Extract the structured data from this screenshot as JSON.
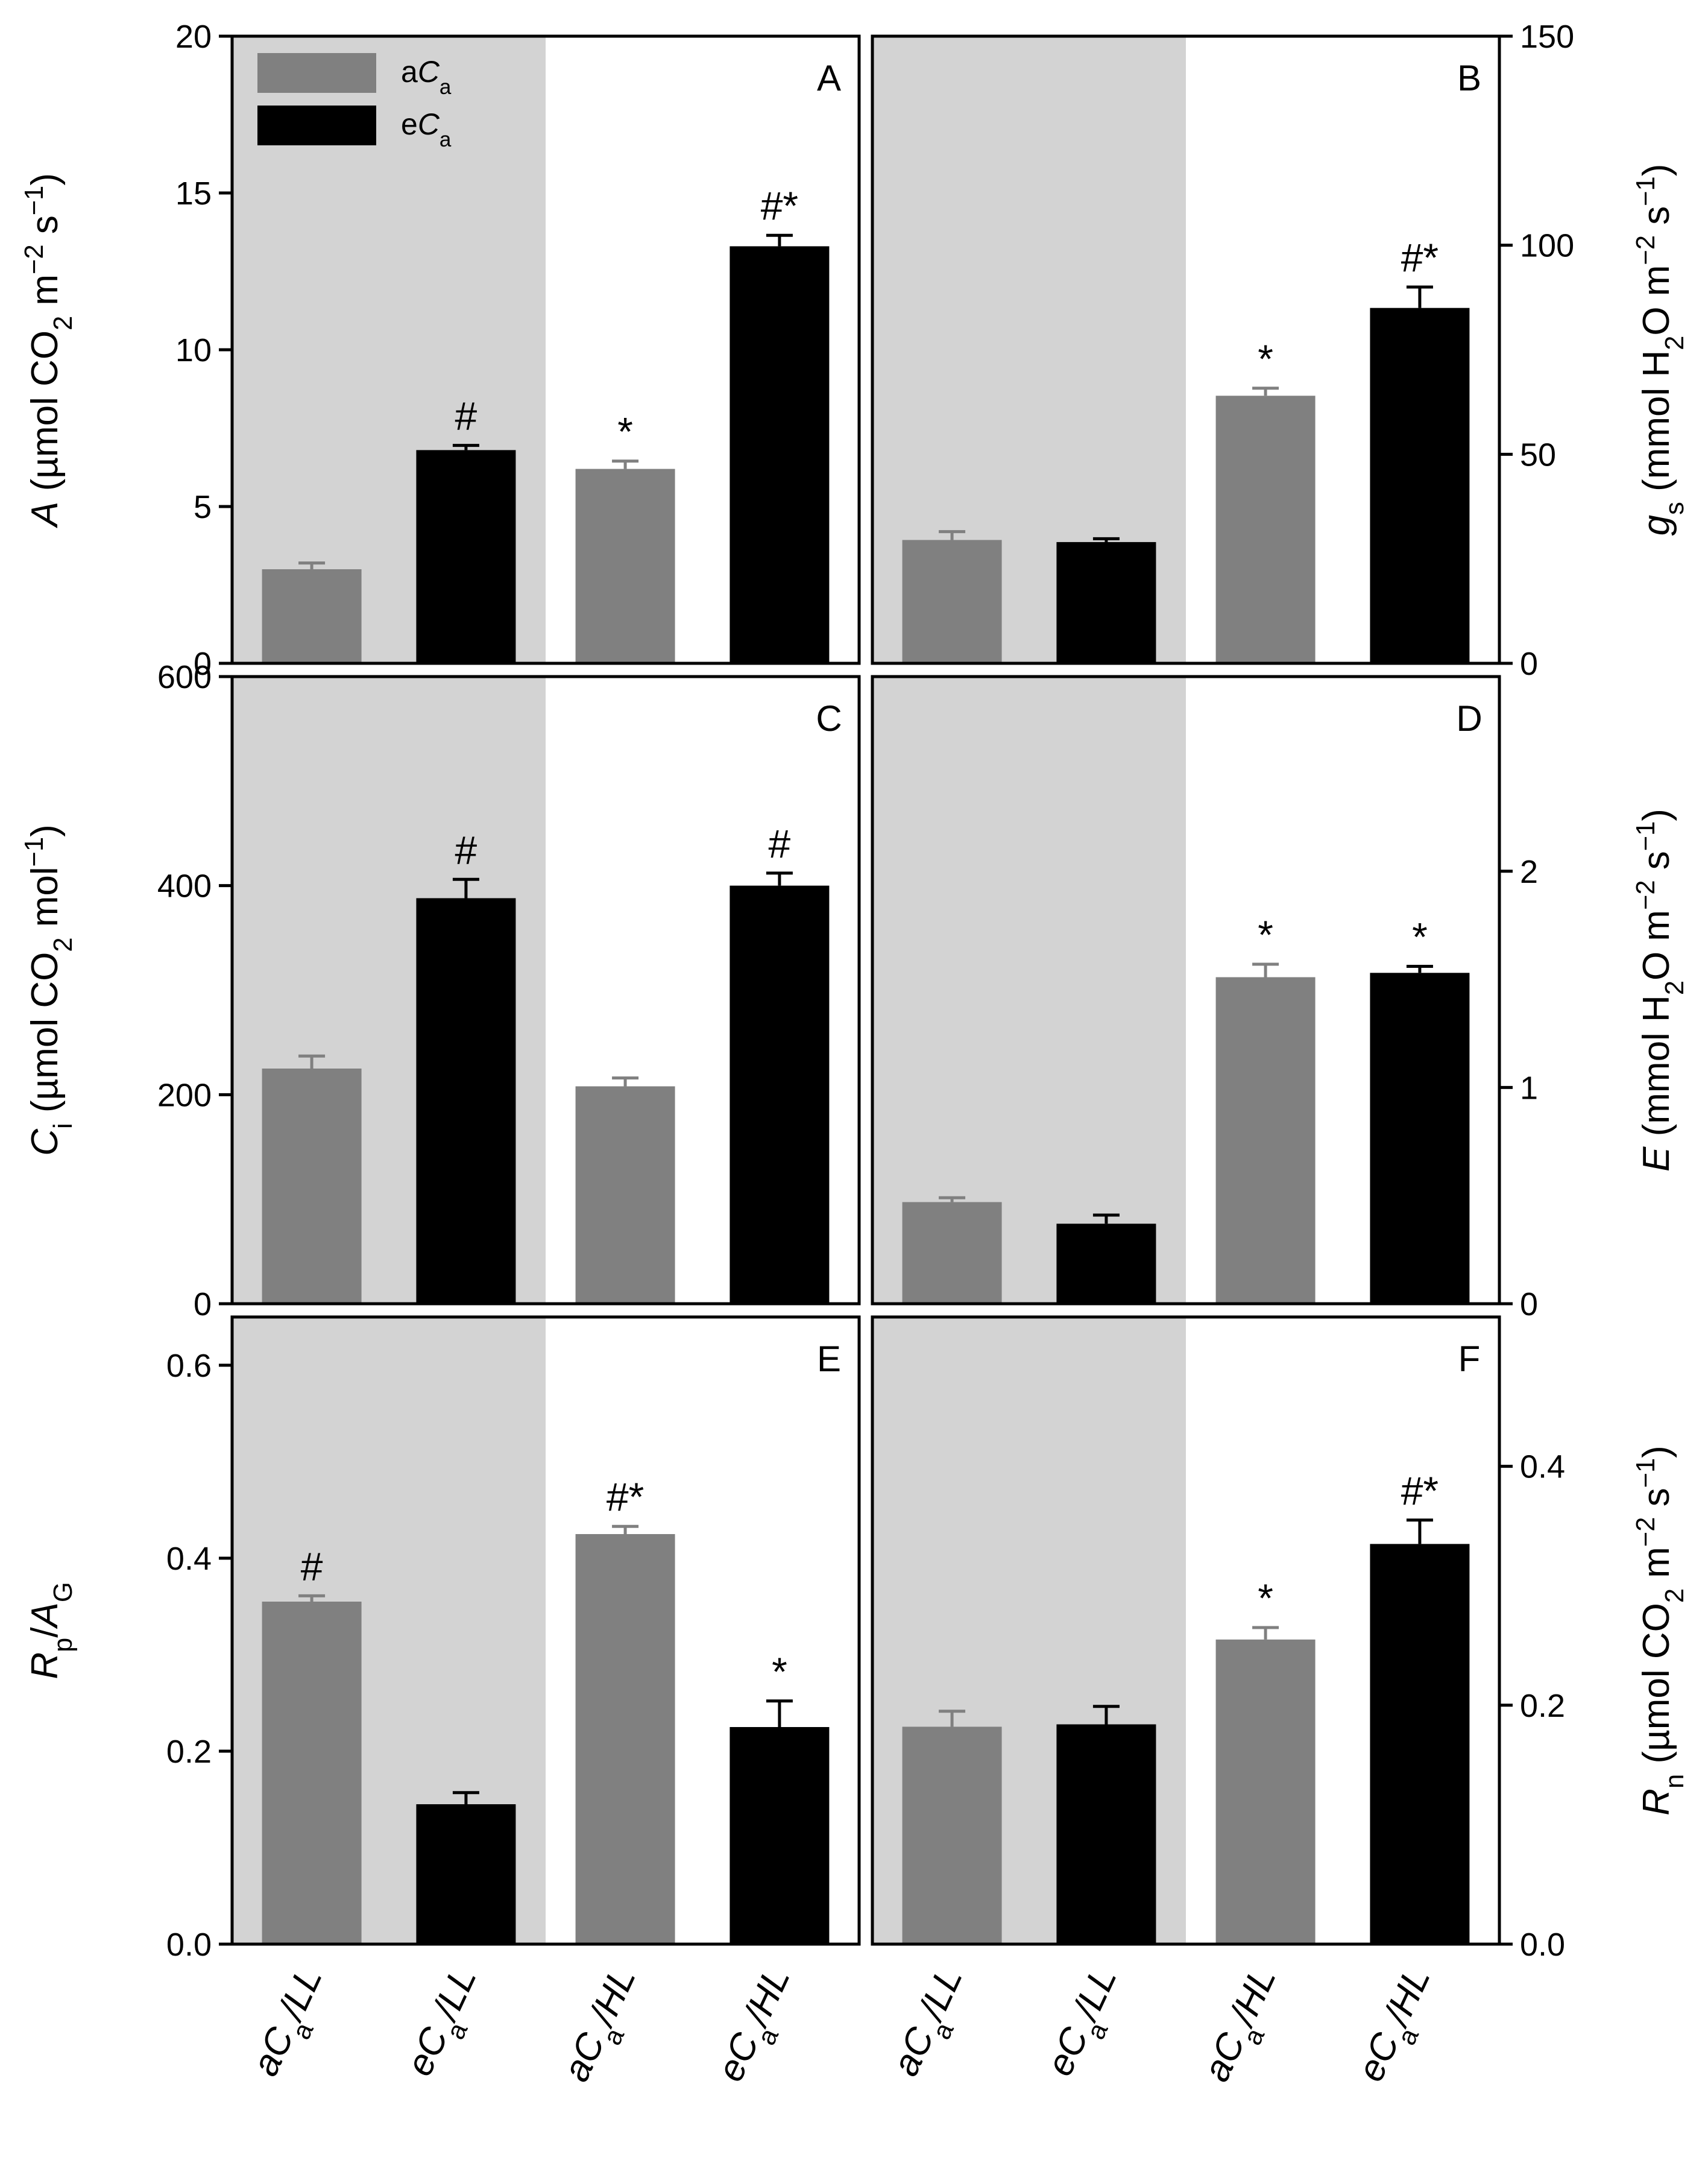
{
  "figure_description": "Six-panel bar chart of leaf gas exchange under ambient or elevated CO2 and low or high light",
  "colors": {
    "aCa": "#808080",
    "eCa": "#000000",
    "shade": "#d3d3d3",
    "axis": "#000000"
  },
  "legend": {
    "entries": [
      {
        "series": "aCa",
        "prefix": "a",
        "ital": "C",
        "sub": "a"
      },
      {
        "series": "eCa",
        "prefix": "e",
        "ital": "C",
        "sub": "a"
      }
    ]
  },
  "x_categories": [
    {
      "prefix": "a",
      "ital": "C",
      "sub": "a",
      "suffix": "/LL"
    },
    {
      "prefix": "e",
      "ital": "C",
      "sub": "a",
      "suffix": "/LL"
    },
    {
      "prefix": "a",
      "ital": "C",
      "sub": "a",
      "suffix": "/HL"
    },
    {
      "prefix": "e",
      "ital": "C",
      "sub": "a",
      "suffix": "/HL"
    }
  ],
  "chart_data": [
    {
      "panel": "A",
      "type": "bar",
      "y_axis_side": "left",
      "categories": [
        "aCa/LL",
        "eCa/LL",
        "aCa/HL",
        "eCa/HL"
      ],
      "series_of_bar": [
        "aCa",
        "eCa",
        "aCa",
        "eCa"
      ],
      "values": [
        3.0,
        6.8,
        6.2,
        13.3
      ],
      "errors": [
        0.2,
        0.15,
        0.25,
        0.35
      ],
      "annotations": [
        "",
        "#",
        "*",
        "#*"
      ],
      "ylim": [
        0,
        20
      ],
      "yticks": [
        0,
        5,
        10,
        15,
        20
      ],
      "ylabel_parts": [
        {
          "t": "A",
          "s": "i"
        },
        {
          "t": " (µmol CO",
          "s": "n"
        },
        {
          "t": "2",
          "s": "sub"
        },
        {
          "t": " m",
          "s": "n"
        },
        {
          "t": "−2",
          "s": "sup"
        },
        {
          "t": " s",
          "s": "n"
        },
        {
          "t": "−1",
          "s": "sup"
        },
        {
          "t": ")",
          "s": "n"
        }
      ],
      "shaded_categories": "aCa/LL, eCa/LL"
    },
    {
      "panel": "B",
      "type": "bar",
      "y_axis_side": "right",
      "categories": [
        "aCa/LL",
        "eCa/LL",
        "aCa/HL",
        "eCa/HL"
      ],
      "series_of_bar": [
        "aCa",
        "eCa",
        "aCa",
        "eCa"
      ],
      "values": [
        29.5,
        29.0,
        64.0,
        85.0
      ],
      "errors": [
        2.0,
        0.8,
        1.8,
        5.0
      ],
      "annotations": [
        "",
        "",
        "*",
        "#*"
      ],
      "ylim": [
        0,
        150
      ],
      "yticks": [
        0,
        50,
        100,
        150
      ],
      "ylabel_parts": [
        {
          "t": "g",
          "s": "i"
        },
        {
          "t": "s",
          "s": "sub"
        },
        {
          "t": " (mmol H",
          "s": "n"
        },
        {
          "t": "2",
          "s": "sub"
        },
        {
          "t": "O m",
          "s": "n"
        },
        {
          "t": "−2",
          "s": "sup"
        },
        {
          "t": " s",
          "s": "n"
        },
        {
          "t": "−1",
          "s": "sup"
        },
        {
          "t": ")",
          "s": "n"
        }
      ],
      "shaded_categories": "aCa/LL, eCa/LL"
    },
    {
      "panel": "C",
      "type": "bar",
      "y_axis_side": "left",
      "categories": [
        "aCa/LL",
        "eCa/LL",
        "aCa/HL",
        "eCa/HL"
      ],
      "series_of_bar": [
        "aCa",
        "eCa",
        "aCa",
        "eCa"
      ],
      "values": [
        225,
        388,
        208,
        400
      ],
      "errors": [
        12,
        18,
        8,
        12
      ],
      "annotations": [
        "",
        "#",
        "",
        "#"
      ],
      "ylim": [
        0,
        600
      ],
      "yticks": [
        0,
        200,
        400,
        600
      ],
      "ylabel_parts": [
        {
          "t": "C",
          "s": "i"
        },
        {
          "t": "i",
          "s": "sub"
        },
        {
          "t": " (µmol CO",
          "s": "n"
        },
        {
          "t": "2",
          "s": "sub"
        },
        {
          "t": " mol",
          "s": "n"
        },
        {
          "t": "−1",
          "s": "sup"
        },
        {
          "t": ")",
          "s": "n"
        }
      ],
      "shaded_categories": "aCa/LL, eCa/LL"
    },
    {
      "panel": "D",
      "type": "bar",
      "y_axis_side": "right",
      "categories": [
        "aCa/LL",
        "eCa/LL",
        "aCa/HL",
        "eCa/HL"
      ],
      "series_of_bar": [
        "aCa",
        "eCa",
        "aCa",
        "eCa"
      ],
      "values": [
        0.47,
        0.37,
        1.51,
        1.53
      ],
      "errors": [
        0.02,
        0.04,
        0.06,
        0.03
      ],
      "annotations": [
        "",
        "",
        "*",
        "*"
      ],
      "ylim": [
        0,
        2.9
      ],
      "yticks": [
        0,
        1,
        2
      ],
      "ylabel_parts": [
        {
          "t": "E",
          "s": "i"
        },
        {
          "t": " (mmol H",
          "s": "n"
        },
        {
          "t": "2",
          "s": "sub"
        },
        {
          "t": "O m",
          "s": "n"
        },
        {
          "t": "−2",
          "s": "sup"
        },
        {
          "t": " s",
          "s": "n"
        },
        {
          "t": "−1",
          "s": "sup"
        },
        {
          "t": ")",
          "s": "n"
        }
      ],
      "shaded_categories": "aCa/LL, eCa/LL"
    },
    {
      "panel": "E",
      "type": "bar",
      "y_axis_side": "left",
      "categories": [
        "aCa/LL",
        "eCa/LL",
        "aCa/HL",
        "eCa/HL"
      ],
      "series_of_bar": [
        "aCa",
        "eCa",
        "aCa",
        "eCa"
      ],
      "values": [
        0.355,
        0.145,
        0.425,
        0.225
      ],
      "errors": [
        0.006,
        0.012,
        0.008,
        0.027
      ],
      "annotations": [
        "#",
        "",
        "#*",
        "*"
      ],
      "ylim": [
        0,
        0.65
      ],
      "yticks": [
        0.0,
        0.2,
        0.4,
        0.6
      ],
      "ylabel_parts": [
        {
          "t": "R",
          "s": "i"
        },
        {
          "t": "p",
          "s": "sub"
        },
        {
          "t": "/",
          "s": "n"
        },
        {
          "t": "A",
          "s": "i"
        },
        {
          "t": "G",
          "s": "sub"
        }
      ],
      "shaded_categories": "aCa/LL, eCa/LL"
    },
    {
      "panel": "F",
      "type": "bar",
      "y_axis_side": "right",
      "categories": [
        "aCa/LL",
        "eCa/LL",
        "aCa/HL",
        "eCa/HL"
      ],
      "series_of_bar": [
        "aCa",
        "eCa",
        "aCa",
        "eCa"
      ],
      "values": [
        0.182,
        0.184,
        0.255,
        0.335
      ],
      "errors": [
        0.013,
        0.015,
        0.01,
        0.02
      ],
      "annotations": [
        "",
        "",
        "*",
        "#*"
      ],
      "ylim": [
        0,
        0.525
      ],
      "yticks": [
        0.0,
        0.2,
        0.4
      ],
      "ylabel_parts": [
        {
          "t": "R",
          "s": "i"
        },
        {
          "t": "n",
          "s": "sub"
        },
        {
          "t": " (µmol CO",
          "s": "n"
        },
        {
          "t": "2",
          "s": "sub"
        },
        {
          "t": " m",
          "s": "n"
        },
        {
          "t": "−2",
          "s": "sup"
        },
        {
          "t": " s",
          "s": "n"
        },
        {
          "t": "−1",
          "s": "sup"
        },
        {
          "t": ")",
          "s": "n"
        }
      ],
      "shaded_categories": "aCa/LL, eCa/LL"
    }
  ]
}
